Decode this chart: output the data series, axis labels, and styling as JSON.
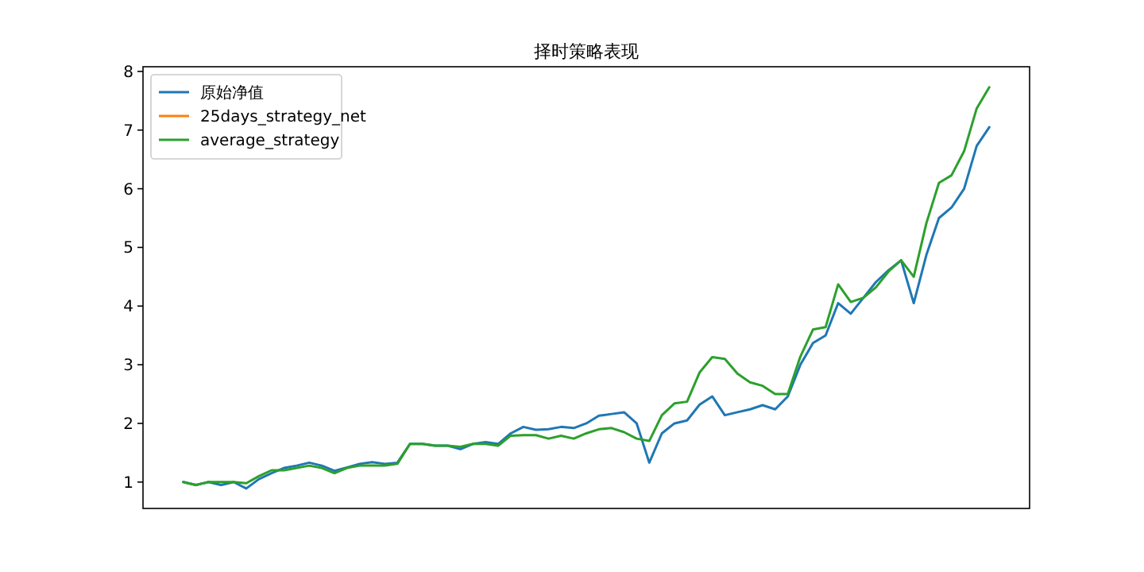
{
  "chart_data": {
    "type": "line",
    "title": "择时策略表现",
    "categories": [
      null,
      null,
      null,
      null,
      null,
      null,
      null,
      null,
      null,
      null,
      null,
      null,
      null,
      null,
      null,
      null,
      null,
      null,
      null,
      null,
      null,
      null,
      null,
      null,
      null,
      null,
      null,
      null,
      null,
      null,
      null,
      null,
      null,
      null,
      null,
      null,
      null,
      null,
      null,
      null,
      null,
      null,
      null,
      null,
      null,
      null,
      null,
      null,
      null,
      null,
      null,
      null,
      null,
      null,
      null,
      null,
      null,
      null,
      null,
      null,
      null,
      null,
      null,
      null,
      null
    ],
    "series": [
      {
        "name": "原始净值",
        "color": "#1f77b4",
        "values": [
          1.0,
          0.95,
          1.0,
          0.95,
          1.0,
          0.89,
          1.05,
          1.15,
          1.24,
          1.28,
          1.33,
          1.28,
          1.19,
          1.25,
          1.31,
          1.34,
          1.31,
          1.33,
          1.65,
          1.65,
          1.62,
          1.62,
          1.56,
          1.65,
          1.68,
          1.65,
          1.83,
          1.94,
          1.89,
          1.9,
          1.94,
          1.92,
          2.0,
          2.13,
          2.16,
          2.19,
          2.0,
          1.33,
          1.83,
          2.0,
          2.05,
          2.32,
          2.46,
          2.14,
          2.19,
          2.24,
          2.31,
          2.24,
          2.46,
          3.0,
          3.37,
          3.5,
          4.05,
          3.87,
          4.14,
          4.41,
          4.61,
          4.78,
          4.05,
          4.87,
          5.5,
          5.68,
          6.0,
          6.73,
          7.05
        ]
      },
      {
        "name": "25days_strategy_net",
        "color": "#ff7f0e",
        "values": [
          null,
          null,
          null,
          null,
          null,
          null,
          null,
          null,
          null,
          null,
          null,
          null,
          null,
          null,
          null,
          null,
          null,
          null,
          null,
          null,
          null,
          null,
          null,
          null,
          null,
          null,
          null,
          null,
          null,
          null,
          null,
          null,
          null,
          null,
          null,
          null,
          null,
          null,
          null,
          null,
          null,
          null,
          null,
          null,
          null,
          null,
          null,
          null,
          null,
          null,
          null,
          null,
          null,
          null,
          null,
          null,
          null,
          null,
          null,
          null,
          null,
          null,
          null,
          null,
          null
        ]
      },
      {
        "name": "average_strategy",
        "color": "#2ca02c",
        "values": [
          1.0,
          0.95,
          1.0,
          1.0,
          1.0,
          0.98,
          1.1,
          1.2,
          1.2,
          1.24,
          1.28,
          1.24,
          1.15,
          1.24,
          1.28,
          1.28,
          1.28,
          1.31,
          1.65,
          1.65,
          1.62,
          1.62,
          1.6,
          1.65,
          1.65,
          1.62,
          1.79,
          1.8,
          1.8,
          1.74,
          1.79,
          1.74,
          1.83,
          1.9,
          1.92,
          1.85,
          1.74,
          1.7,
          2.14,
          2.34,
          2.37,
          2.87,
          3.13,
          3.1,
          2.85,
          2.7,
          2.64,
          2.5,
          2.5,
          3.14,
          3.6,
          3.64,
          4.37,
          4.07,
          4.14,
          4.32,
          4.59,
          4.78,
          4.5,
          5.41,
          6.1,
          6.23,
          6.64,
          7.37,
          7.73
        ]
      }
    ],
    "ylim": [
      0.55,
      8.08
    ],
    "yticks": [
      1,
      2,
      3,
      4,
      5,
      6,
      7,
      8
    ],
    "legend": "top left",
    "marker": "none",
    "line_style": "solid",
    "grid": false
  }
}
